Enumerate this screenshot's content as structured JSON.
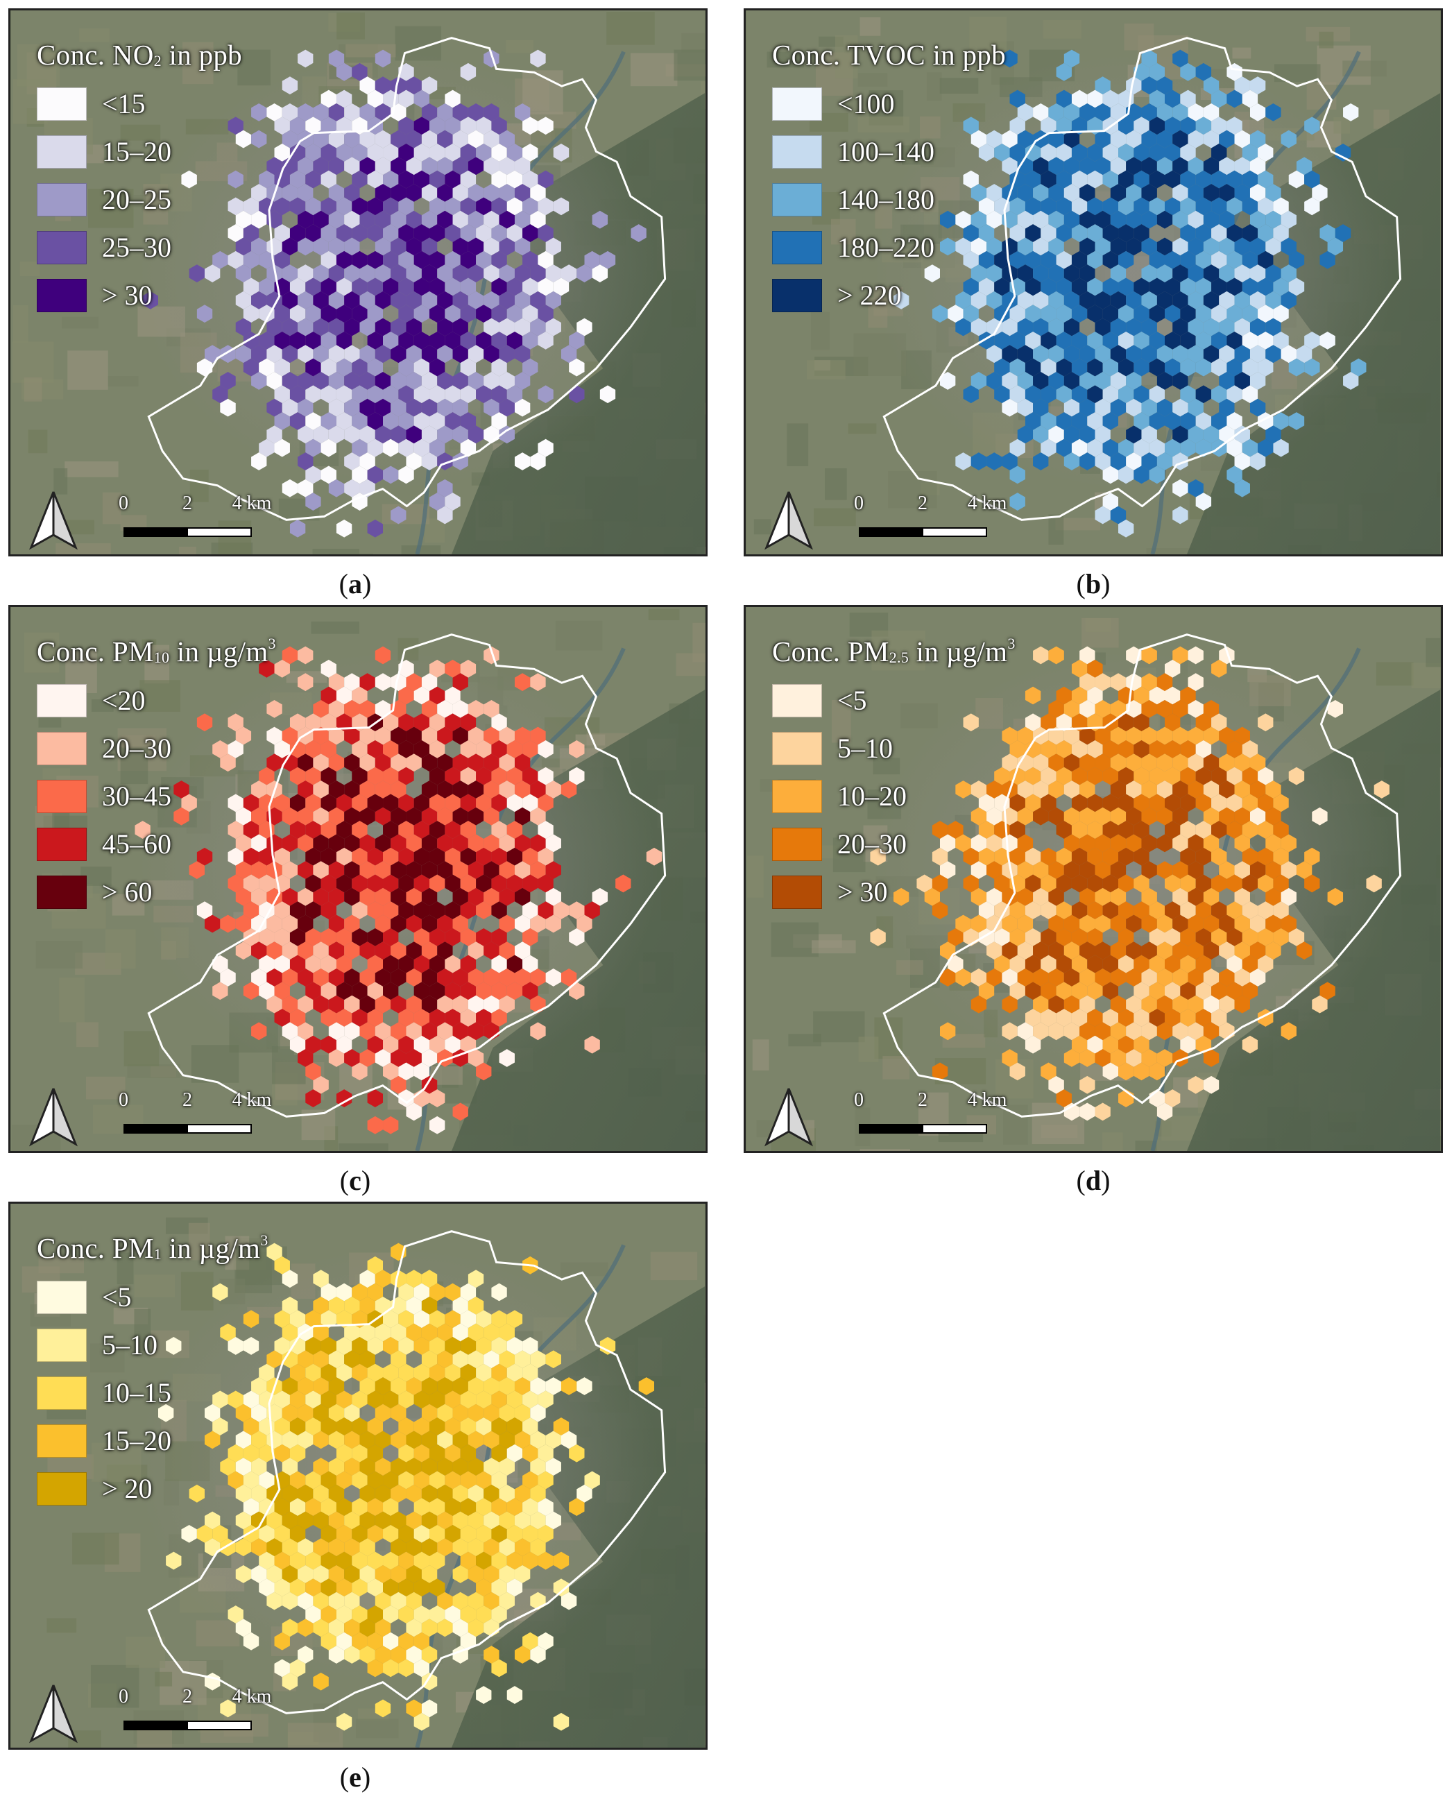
{
  "panels": [
    {
      "id": "a",
      "caption": "a",
      "title_pre": "Conc. NO",
      "title_sub": "2",
      "title_post": " in ppb",
      "title_sup": "",
      "legend": [
        {
          "label": "<15",
          "color": "#fcfbfd"
        },
        {
          "label": "15–20",
          "color": "#dadaeb"
        },
        {
          "label": "20–25",
          "color": "#9e9ac8"
        },
        {
          "label": "25–30",
          "color": "#6a51a3"
        },
        {
          "label": "> 30",
          "color": "#3f007d"
        }
      ],
      "scale": {
        "ticks": [
          "0",
          "2",
          "4 km"
        ]
      }
    },
    {
      "id": "b",
      "caption": "b",
      "title_pre": "Conc. TVOC in ppb",
      "title_sub": "",
      "title_post": "",
      "title_sup": "",
      "legend": [
        {
          "label": "<100",
          "color": "#f2f7fd"
        },
        {
          "label": "100–140",
          "color": "#c6dbef"
        },
        {
          "label": "140–180",
          "color": "#6baed6"
        },
        {
          "label": "180–220",
          "color": "#2171b5"
        },
        {
          "label": "> 220",
          "color": "#08306b"
        }
      ],
      "scale": {
        "ticks": [
          "0",
          "2",
          "4 km"
        ]
      }
    },
    {
      "id": "c",
      "caption": "c",
      "title_pre": "Conc. PM",
      "title_sub": "10",
      "title_post": " in µg/m",
      "title_sup": "3",
      "legend": [
        {
          "label": "<20",
          "color": "#fff5f0"
        },
        {
          "label": "20–30",
          "color": "#fcbba1"
        },
        {
          "label": "30–45",
          "color": "#fb6a4a"
        },
        {
          "label": "45–60",
          "color": "#cb181d"
        },
        {
          "label": "> 60",
          "color": "#67000d"
        }
      ],
      "scale": {
        "ticks": [
          "0",
          "2",
          "4 km"
        ]
      }
    },
    {
      "id": "d",
      "caption": "d",
      "title_pre": "Conc. PM",
      "title_sub": "2.5",
      "title_post": " in µg/m",
      "title_sup": "3",
      "legend": [
        {
          "label": "<5",
          "color": "#fff1dd"
        },
        {
          "label": "5–10",
          "color": "#fdd49e"
        },
        {
          "label": "10–20",
          "color": "#fdae3b"
        },
        {
          "label": "20–30",
          "color": "#e6790b"
        },
        {
          "label": "> 30",
          "color": "#b34c05"
        }
      ],
      "scale": {
        "ticks": [
          "0",
          "2",
          "4 km"
        ]
      }
    },
    {
      "id": "e",
      "caption": "e",
      "title_pre": "Conc. PM",
      "title_sub": "1",
      "title_post": " in µg/m",
      "title_sup": "3",
      "legend": [
        {
          "label": "<5",
          "color": "#fffbe0"
        },
        {
          "label": "5–10",
          "color": "#fff09a"
        },
        {
          "label": "10–15",
          "color": "#ffdd55"
        },
        {
          "label": "15–20",
          "color": "#fbc02d"
        },
        {
          "label": "> 20",
          "color": "#d4a500"
        }
      ],
      "scale": {
        "ticks": [
          "0",
          "2",
          "4 km"
        ]
      }
    }
  ]
}
